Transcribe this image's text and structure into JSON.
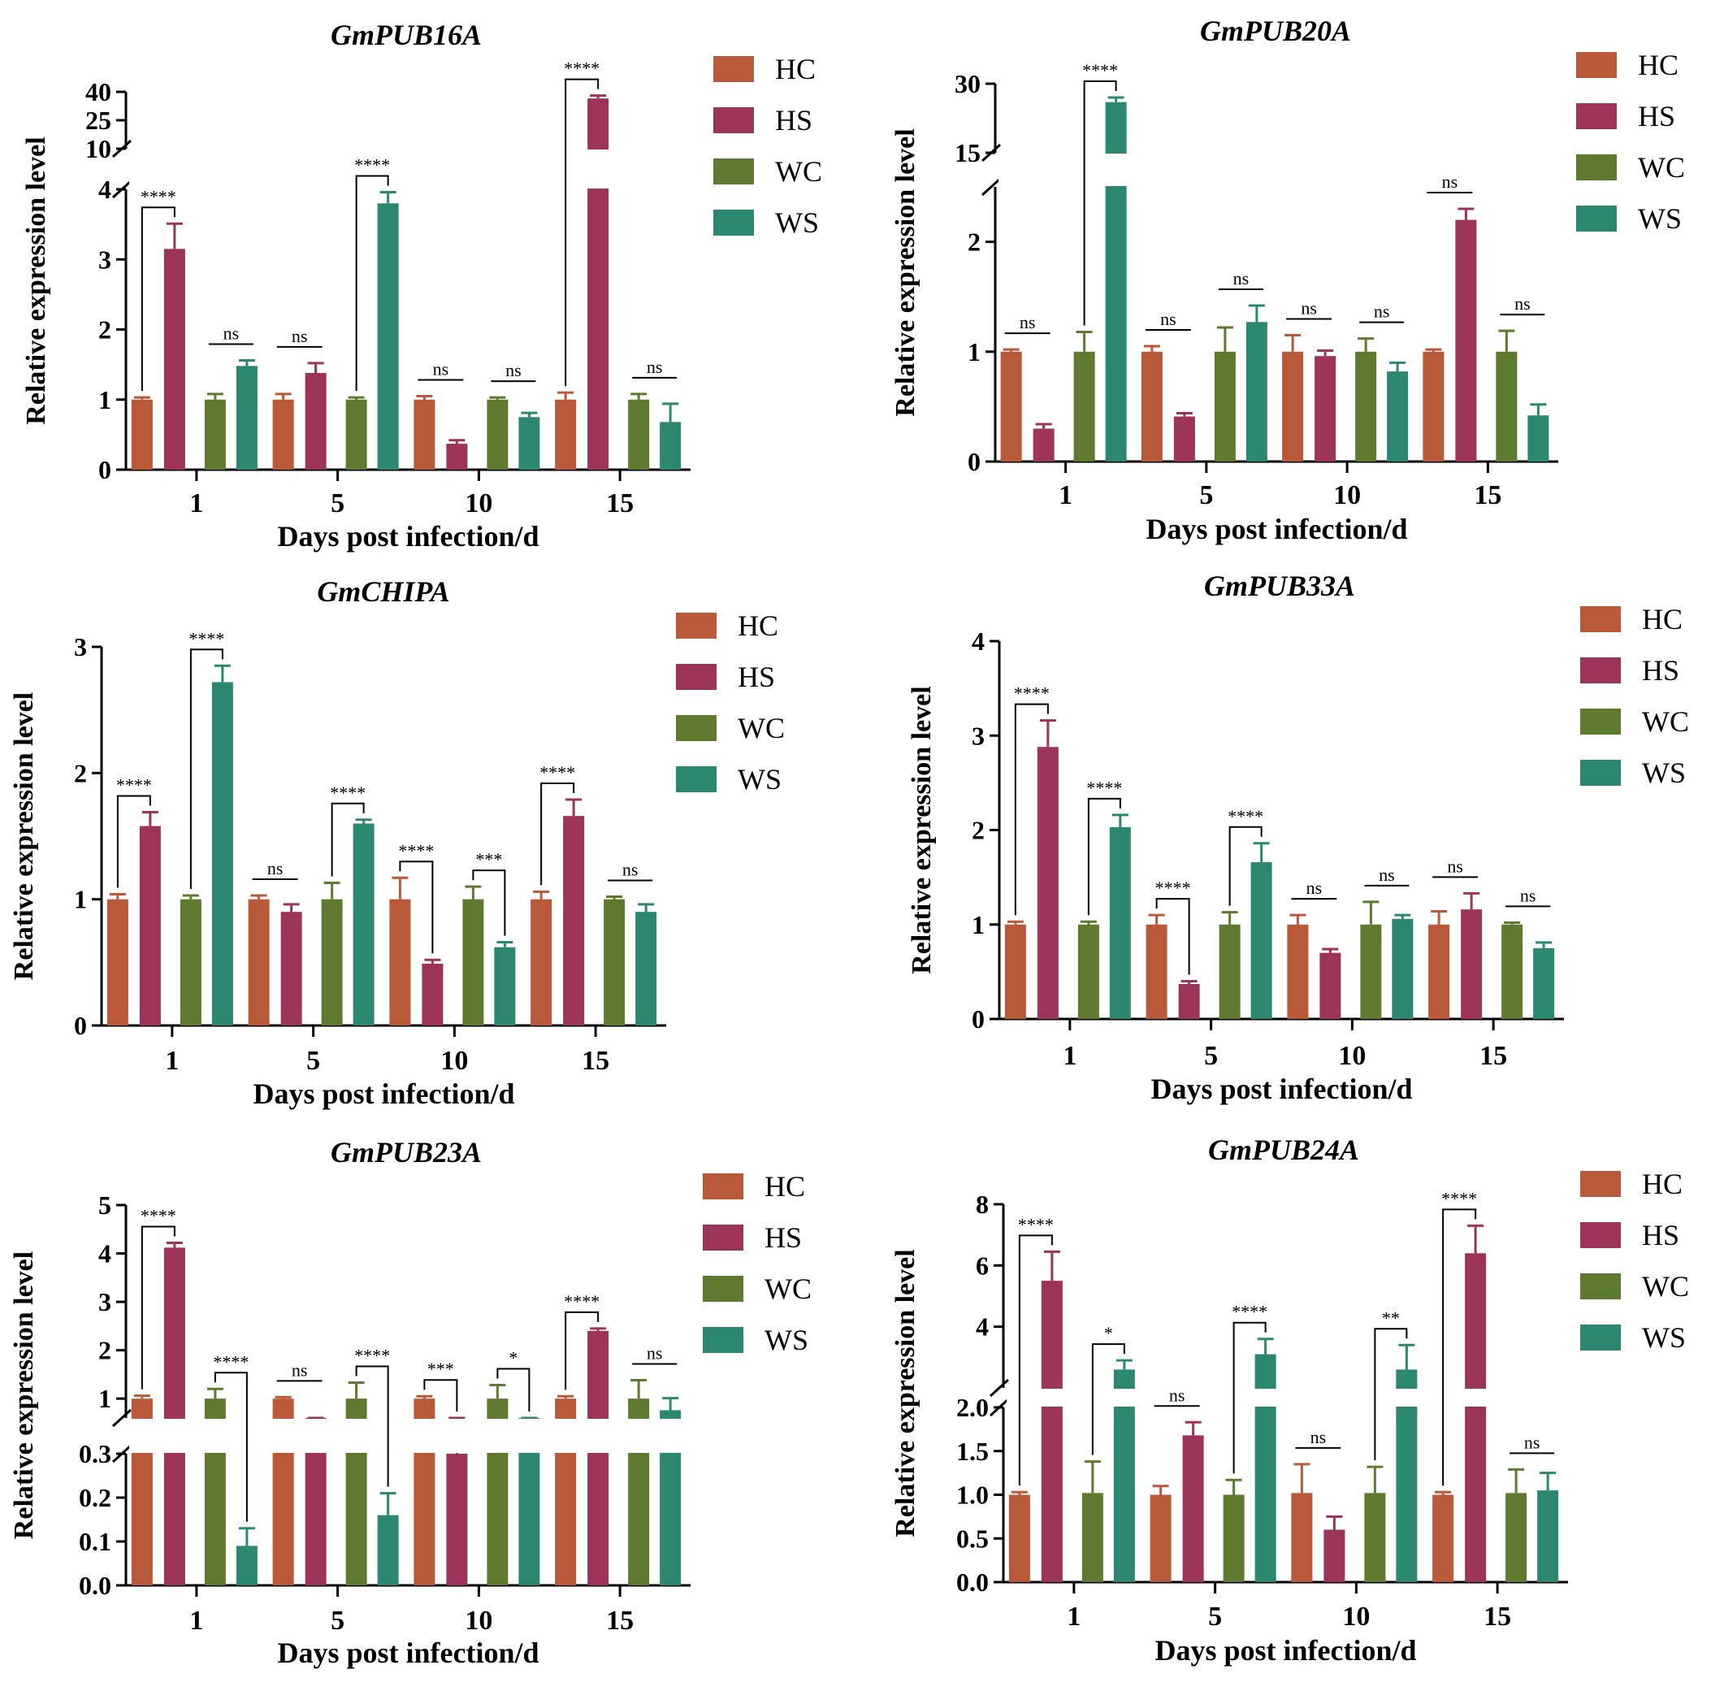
{
  "colors": {
    "HC": "#B85A3A",
    "HS": "#9C3358",
    "WC": "#5E7A2E",
    "WS": "#2B8770"
  },
  "chart_data": [
    {
      "type": "bar",
      "title": "GmPUB16A",
      "xlabel": "Days post infection/d",
      "ylabel": "Relative expression level",
      "categories": [
        "1",
        "5",
        "10",
        "15"
      ],
      "legend": [
        "HC",
        "HS",
        "WC",
        "WS"
      ],
      "y_ticks_lower": [
        "0",
        "1",
        "2",
        "3",
        "4"
      ],
      "y_ticks_upper": [
        "10",
        "25",
        "40"
      ],
      "axis_break": {
        "lower_max": 4,
        "upper_min": 10,
        "upper_max": 40
      },
      "series": [
        {
          "name": "HC",
          "values": [
            1.0,
            1.0,
            1.0,
            1.0
          ],
          "errors": [
            0.03,
            0.08,
            0.05,
            0.1
          ]
        },
        {
          "name": "HS",
          "values": [
            3.15,
            1.38,
            0.37,
            36.5
          ],
          "errors": [
            0.36,
            0.14,
            0.05,
            1.5
          ]
        },
        {
          "name": "WC",
          "values": [
            1.0,
            1.0,
            1.0,
            1.0
          ],
          "errors": [
            0.08,
            0.03,
            0.03,
            0.08
          ]
        },
        {
          "name": "WS",
          "values": [
            1.48,
            3.8,
            0.75,
            0.68
          ],
          "errors": [
            0.08,
            0.16,
            0.06,
            0.26
          ]
        }
      ],
      "significance": [
        {
          "text": "****",
          "cat": 0,
          "a": 0,
          "b": 1
        },
        {
          "text": "ns",
          "cat": 0,
          "a": 2,
          "b": 3
        },
        {
          "text": "ns",
          "cat": 1,
          "a": 0,
          "b": 1
        },
        {
          "text": "****",
          "cat": 1,
          "a": 2,
          "b": 3
        },
        {
          "text": "ns",
          "cat": 2,
          "a": 0,
          "b": 1
        },
        {
          "text": "ns",
          "cat": 2,
          "a": 2,
          "b": 3
        },
        {
          "text": "****",
          "cat": 3,
          "a": 0,
          "b": 1
        },
        {
          "text": "ns",
          "cat": 3,
          "a": 2,
          "b": 3
        }
      ]
    },
    {
      "type": "bar",
      "title": "GmPUB20A",
      "xlabel": "Days post infection/d",
      "ylabel": "Relative expression level",
      "categories": [
        "1",
        "5",
        "10",
        "15"
      ],
      "legend": [
        "HC",
        "HS",
        "WC",
        "WS"
      ],
      "y_ticks_lower": [
        "0",
        "1",
        "2"
      ],
      "y_ticks_upper": [
        "15",
        "30"
      ],
      "axis_break": {
        "lower_max": 2.5,
        "upper_min": 15,
        "upper_max": 30
      },
      "series": [
        {
          "name": "HC",
          "values": [
            1.0,
            1.0,
            1.0,
            1.0
          ],
          "errors": [
            0.02,
            0.05,
            0.15,
            0.02
          ]
        },
        {
          "name": "HS",
          "values": [
            0.3,
            0.41,
            0.96,
            2.2
          ],
          "errors": [
            0.04,
            0.03,
            0.05,
            0.1
          ]
        },
        {
          "name": "WC",
          "values": [
            1.0,
            1.0,
            1.0,
            1.0
          ],
          "errors": [
            0.18,
            0.22,
            0.12,
            0.19
          ]
        },
        {
          "name": "WS",
          "values": [
            26.0,
            1.27,
            0.82,
            0.42
          ],
          "errors": [
            1.0,
            0.15,
            0.08,
            0.1
          ]
        }
      ],
      "significance": [
        {
          "text": "ns",
          "cat": 0,
          "a": 0,
          "b": 1
        },
        {
          "text": "****",
          "cat": 0,
          "a": 2,
          "b": 3
        },
        {
          "text": "ns",
          "cat": 1,
          "a": 0,
          "b": 1
        },
        {
          "text": "ns",
          "cat": 1,
          "a": 2,
          "b": 3
        },
        {
          "text": "ns",
          "cat": 2,
          "a": 0,
          "b": 1
        },
        {
          "text": "ns",
          "cat": 2,
          "a": 2,
          "b": 3
        },
        {
          "text": "ns",
          "cat": 3,
          "a": 0,
          "b": 1
        },
        {
          "text": "ns",
          "cat": 3,
          "a": 2,
          "b": 3
        }
      ]
    },
    {
      "type": "bar",
      "title": "GmCHIPA",
      "xlabel": "Days post infection/d",
      "ylabel": "Relative expression level",
      "categories": [
        "1",
        "5",
        "10",
        "15"
      ],
      "legend": [
        "HC",
        "HS",
        "WC",
        "WS"
      ],
      "y_ticks": [
        "0",
        "1",
        "2",
        "3"
      ],
      "ylim": [
        0,
        3
      ],
      "series": [
        {
          "name": "HC",
          "values": [
            1.0,
            1.0,
            1.0,
            1.0
          ],
          "errors": [
            0.04,
            0.03,
            0.17,
            0.06
          ]
        },
        {
          "name": "HS",
          "values": [
            1.58,
            0.9,
            0.49,
            1.66
          ],
          "errors": [
            0.11,
            0.06,
            0.03,
            0.13
          ]
        },
        {
          "name": "WC",
          "values": [
            1.0,
            1.0,
            1.0,
            1.0
          ],
          "errors": [
            0.03,
            0.13,
            0.1,
            0.02
          ]
        },
        {
          "name": "WS",
          "values": [
            2.72,
            1.6,
            0.62,
            0.9
          ],
          "errors": [
            0.13,
            0.03,
            0.04,
            0.06
          ]
        }
      ],
      "significance": [
        {
          "text": "****",
          "cat": 0,
          "a": 0,
          "b": 1
        },
        {
          "text": "****",
          "cat": 0,
          "a": 2,
          "b": 3
        },
        {
          "text": "ns",
          "cat": 1,
          "a": 0,
          "b": 1
        },
        {
          "text": "****",
          "cat": 1,
          "a": 2,
          "b": 3
        },
        {
          "text": "****",
          "cat": 2,
          "a": 0,
          "b": 1
        },
        {
          "text": "***",
          "cat": 2,
          "a": 2,
          "b": 3
        },
        {
          "text": "****",
          "cat": 3,
          "a": 0,
          "b": 1
        },
        {
          "text": "ns",
          "cat": 3,
          "a": 2,
          "b": 3
        }
      ]
    },
    {
      "type": "bar",
      "title": "GmPUB33A",
      "xlabel": "Days post infection/d",
      "ylabel": "Relative expression level",
      "categories": [
        "1",
        "5",
        "10",
        "15"
      ],
      "legend": [
        "HC",
        "HS",
        "WC",
        "WS"
      ],
      "y_ticks": [
        "0",
        "1",
        "2",
        "3",
        "4"
      ],
      "ylim": [
        0,
        4
      ],
      "series": [
        {
          "name": "HC",
          "values": [
            1.0,
            1.0,
            1.0,
            1.0
          ],
          "errors": [
            0.03,
            0.1,
            0.1,
            0.14
          ]
        },
        {
          "name": "HS",
          "values": [
            2.88,
            0.37,
            0.7,
            1.16
          ],
          "errors": [
            0.28,
            0.03,
            0.04,
            0.17
          ]
        },
        {
          "name": "WC",
          "values": [
            1.0,
            1.0,
            1.0,
            1.0
          ],
          "errors": [
            0.03,
            0.13,
            0.24,
            0.02
          ]
        },
        {
          "name": "WS",
          "values": [
            2.03,
            1.66,
            1.06,
            0.75
          ],
          "errors": [
            0.13,
            0.2,
            0.04,
            0.06
          ]
        }
      ],
      "significance": [
        {
          "text": "****",
          "cat": 0,
          "a": 0,
          "b": 1
        },
        {
          "text": "****",
          "cat": 0,
          "a": 2,
          "b": 3
        },
        {
          "text": "****",
          "cat": 1,
          "a": 0,
          "b": 1
        },
        {
          "text": "****",
          "cat": 1,
          "a": 2,
          "b": 3
        },
        {
          "text": "ns",
          "cat": 2,
          "a": 0,
          "b": 1
        },
        {
          "text": "ns",
          "cat": 2,
          "a": 2,
          "b": 3
        },
        {
          "text": "ns",
          "cat": 3,
          "a": 0,
          "b": 1
        },
        {
          "text": "ns",
          "cat": 3,
          "a": 2,
          "b": 3
        }
      ]
    },
    {
      "type": "bar",
      "title": "GmPUB23A",
      "xlabel": "Days post infection/d",
      "ylabel": "Relative expression level",
      "categories": [
        "1",
        "5",
        "10",
        "15"
      ],
      "legend": [
        "HC",
        "HS",
        "WC",
        "WS"
      ],
      "y_ticks_lower": [
        "0.0",
        "0.1",
        "0.2",
        "0.3"
      ],
      "y_ticks_upper": [
        "1",
        "2",
        "3",
        "4",
        "5"
      ],
      "axis_break": {
        "lower_max": 0.3,
        "upper_min": 0.6,
        "upper_max": 5
      },
      "series": [
        {
          "name": "HC",
          "values": [
            1.0,
            1.0,
            1.0,
            1.0
          ],
          "errors": [
            0.06,
            0.03,
            0.05,
            0.05
          ]
        },
        {
          "name": "HS",
          "values": [
            4.12,
            0.47,
            0.3,
            2.4
          ],
          "errors": [
            0.1,
            0.08,
            0.015,
            0.05
          ]
        },
        {
          "name": "WC",
          "values": [
            1.0,
            1.0,
            1.0,
            1.0
          ],
          "errors": [
            0.2,
            0.33,
            0.28,
            0.38
          ]
        },
        {
          "name": "WS",
          "values": [
            0.09,
            0.16,
            0.4,
            0.76
          ],
          "errors": [
            0.04,
            0.05,
            0.2,
            0.25
          ]
        }
      ],
      "significance": [
        {
          "text": "****",
          "cat": 0,
          "a": 0,
          "b": 1
        },
        {
          "text": "****",
          "cat": 0,
          "a": 2,
          "b": 3
        },
        {
          "text": "ns",
          "cat": 1,
          "a": 0,
          "b": 1
        },
        {
          "text": "****",
          "cat": 1,
          "a": 2,
          "b": 3
        },
        {
          "text": "***",
          "cat": 2,
          "a": 0,
          "b": 1
        },
        {
          "text": "*",
          "cat": 2,
          "a": 2,
          "b": 3
        },
        {
          "text": "****",
          "cat": 3,
          "a": 0,
          "b": 1
        },
        {
          "text": "ns",
          "cat": 3,
          "a": 2,
          "b": 3
        }
      ]
    },
    {
      "type": "bar",
      "title": "GmPUB24A",
      "xlabel": "Days post infection/d",
      "ylabel": "Relative expression level",
      "categories": [
        "1",
        "5",
        "10",
        "15"
      ],
      "legend": [
        "HC",
        "HS",
        "WC",
        "WS"
      ],
      "y_ticks_lower": [
        "0.0",
        "0.5",
        "1.0",
        "1.5",
        "2.0"
      ],
      "y_ticks_upper": [
        "4",
        "6",
        "8"
      ],
      "axis_break": {
        "lower_max": 2.0,
        "upper_min": 2.0,
        "upper_max": 8
      },
      "series": [
        {
          "name": "HC",
          "values": [
            1.0,
            1.0,
            1.02,
            1.0
          ],
          "errors": [
            0.03,
            0.1,
            0.33,
            0.03
          ]
        },
        {
          "name": "HS",
          "values": [
            5.5,
            1.68,
            0.6,
            6.4
          ],
          "errors": [
            0.95,
            0.15,
            0.15,
            0.9
          ]
        },
        {
          "name": "WC",
          "values": [
            1.02,
            1.0,
            1.02,
            1.02
          ],
          "errors": [
            0.36,
            0.17,
            0.3,
            0.27
          ]
        },
        {
          "name": "WS",
          "values": [
            2.6,
            3.1,
            2.6,
            1.05
          ],
          "errors": [
            0.3,
            0.5,
            0.8,
            0.2
          ]
        }
      ],
      "significance": [
        {
          "text": "****",
          "cat": 0,
          "a": 0,
          "b": 1
        },
        {
          "text": "*",
          "cat": 0,
          "a": 2,
          "b": 3
        },
        {
          "text": "ns",
          "cat": 1,
          "a": 0,
          "b": 1
        },
        {
          "text": "****",
          "cat": 1,
          "a": 2,
          "b": 3
        },
        {
          "text": "ns",
          "cat": 2,
          "a": 0,
          "b": 1
        },
        {
          "text": "**",
          "cat": 2,
          "a": 2,
          "b": 3
        },
        {
          "text": "****",
          "cat": 3,
          "a": 0,
          "b": 1
        },
        {
          "text": "ns",
          "cat": 3,
          "a": 2,
          "b": 3
        }
      ]
    }
  ]
}
